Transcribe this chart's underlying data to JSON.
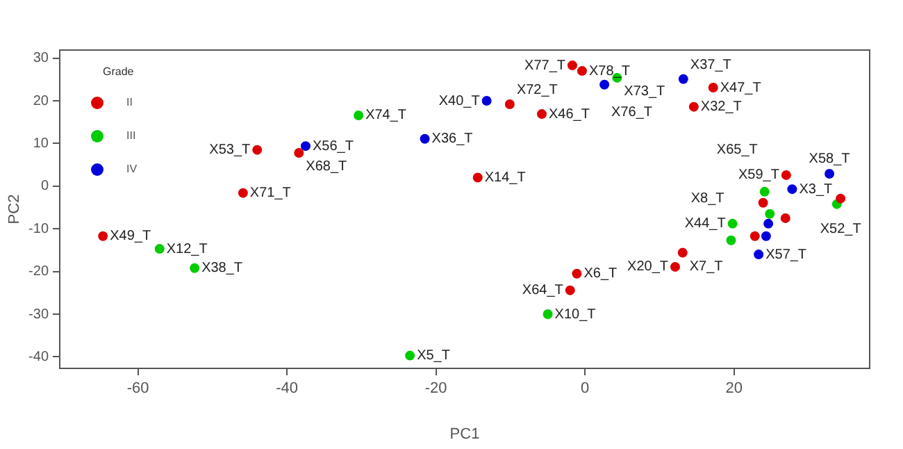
{
  "chart_data": {
    "type": "scatter",
    "xlabel": "PC1",
    "ylabel": "PC2",
    "legend_title": "Grade",
    "legend": "top left",
    "marker": "circle",
    "grid": false,
    "xlim": [
      -70.5,
      38.2
    ],
    "ylim": [
      -42.7,
      31.9
    ],
    "xticks": [
      -60,
      -40,
      -20,
      0,
      20
    ],
    "yticks": [
      -40,
      -30,
      -20,
      -10,
      0,
      10,
      20,
      30
    ],
    "series": [
      {
        "name": "II",
        "color": "#dd0000",
        "x": [
          -64.7,
          -45.9,
          -44,
          -38.4,
          -14.4,
          -10.1,
          -5.8,
          -1.7,
          -0.4,
          17.2,
          14.6,
          -1.1,
          -2,
          13.1,
          12.1,
          27,
          23.9,
          34.3,
          26.9,
          22.8
        ],
        "values": [
          -11.7,
          -1.6,
          8.5,
          7.8,
          2,
          19.2,
          16.9,
          28.3,
          27,
          23.1,
          18.6,
          -20.5,
          -24.4,
          -15.6,
          -18.9,
          2.6,
          -3.9,
          -2.9,
          -7.5,
          -11.7
        ],
        "value_labels": [
          "X49_T",
          "X71_T",
          "X53_T",
          "X68_T",
          "X14_T",
          "X72_T",
          "X46_T",
          "X77_T",
          "X78_T",
          "X47_T",
          "X32_T",
          "X6_T",
          "X64_T",
          "X7_T",
          "X20_T",
          "X59_T",
          null,
          "X52_T",
          null,
          null
        ]
      },
      {
        "name": "III",
        "color": "#00cc00",
        "x": [
          -57.1,
          -52.4,
          -30.4,
          4.3,
          -5,
          -23.5,
          24.1,
          33.8,
          24.8,
          19.8,
          19.6
        ],
        "values": [
          -14.7,
          -19.2,
          16.6,
          25.4,
          -30,
          -39.7,
          -1.3,
          -4.2,
          -6.5,
          -8.8,
          -12.7
        ],
        "value_labels": [
          "X12_T",
          "X38_T",
          "X74_T",
          "X73_T",
          "X10_T",
          "X5_T",
          "X65_T",
          null,
          null,
          "X44_T",
          "X8_T"
        ]
      },
      {
        "name": "IV",
        "color": "#0000dd",
        "x": [
          -37.5,
          -21.5,
          -13.2,
          2.6,
          13.2,
          32.8,
          27.8,
          24.6,
          24.3,
          23.3
        ],
        "values": [
          9.4,
          11.1,
          20,
          23.8,
          25.1,
          2.9,
          -0.7,
          -8.8,
          -11.7,
          -16
        ],
        "value_labels": [
          "X56_T",
          "X36_T",
          "X40_T",
          "X76_T",
          "X37_T",
          "X58_T",
          "X3_T",
          null,
          null,
          "X57_T"
        ]
      }
    ]
  }
}
